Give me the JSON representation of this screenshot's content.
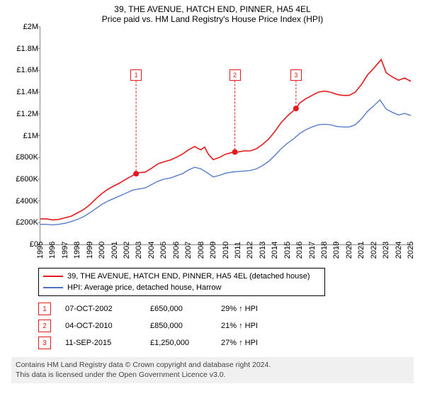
{
  "title_line1": "39, THE AVENUE, HATCH END, PINNER, HA5 4EL",
  "title_line2": "Price paid vs. HM Land Registry's House Price Index (HPI)",
  "y_axis": {
    "min": 0,
    "max": 2000000,
    "step": 200000,
    "ticks": [
      "£0",
      "£200K",
      "£400K",
      "£600K",
      "£800K",
      "£1M",
      "£1.2M",
      "£1.4M",
      "£1.6M",
      "£1.8M",
      "£2M"
    ]
  },
  "x_axis": {
    "min": 1995,
    "max": 2025,
    "ticks": [
      1995,
      1996,
      1997,
      1998,
      1999,
      2000,
      2001,
      2002,
      2003,
      2004,
      2005,
      2006,
      2007,
      2008,
      2009,
      2010,
      2011,
      2012,
      2013,
      2014,
      2015,
      2016,
      2017,
      2018,
      2019,
      2020,
      2021,
      2022,
      2023,
      2024,
      2025
    ]
  },
  "colors": {
    "series_red": "#e41a1c",
    "series_blue": "#4a74c9",
    "grid": "#ffffff",
    "tick": "#888888",
    "callout_border": "#e41a1c",
    "footer_bg": "#f0f0f0"
  },
  "series": {
    "red": {
      "label": "39, THE AVENUE, HATCH END, PINNER, HA5 4EL (detached house)",
      "width": 1.6,
      "points": [
        [
          1995,
          235000
        ],
        [
          1995.5,
          235000
        ],
        [
          1996,
          225000
        ],
        [
          1996.5,
          230000
        ],
        [
          1997,
          245000
        ],
        [
          1997.5,
          260000
        ],
        [
          1998,
          290000
        ],
        [
          1998.5,
          320000
        ],
        [
          1999,
          365000
        ],
        [
          1999.5,
          420000
        ],
        [
          2000,
          470000
        ],
        [
          2000.5,
          510000
        ],
        [
          2001,
          540000
        ],
        [
          2001.5,
          570000
        ],
        [
          2002,
          605000
        ],
        [
          2002.5,
          635000
        ],
        [
          2002.75,
          650000
        ],
        [
          2003,
          660000
        ],
        [
          2003.5,
          665000
        ],
        [
          2004,
          700000
        ],
        [
          2004.5,
          740000
        ],
        [
          2005,
          760000
        ],
        [
          2005.5,
          775000
        ],
        [
          2006,
          800000
        ],
        [
          2006.5,
          830000
        ],
        [
          2007,
          870000
        ],
        [
          2007.5,
          900000
        ],
        [
          2007.8,
          880000
        ],
        [
          2008,
          870000
        ],
        [
          2008.3,
          895000
        ],
        [
          2008.6,
          830000
        ],
        [
          2009,
          780000
        ],
        [
          2009.5,
          800000
        ],
        [
          2010,
          830000
        ],
        [
          2010.5,
          845000
        ],
        [
          2010.75,
          850000
        ],
        [
          2011,
          850000
        ],
        [
          2011.5,
          860000
        ],
        [
          2012,
          860000
        ],
        [
          2012.5,
          880000
        ],
        [
          2013,
          920000
        ],
        [
          2013.5,
          970000
        ],
        [
          2014,
          1040000
        ],
        [
          2014.5,
          1120000
        ],
        [
          2015,
          1180000
        ],
        [
          2015.5,
          1230000
        ],
        [
          2015.7,
          1250000
        ],
        [
          2016,
          1300000
        ],
        [
          2016.5,
          1340000
        ],
        [
          2017,
          1370000
        ],
        [
          2017.5,
          1400000
        ],
        [
          2018,
          1410000
        ],
        [
          2018.5,
          1400000
        ],
        [
          2019,
          1380000
        ],
        [
          2019.5,
          1370000
        ],
        [
          2020,
          1370000
        ],
        [
          2020.5,
          1400000
        ],
        [
          2021,
          1470000
        ],
        [
          2021.5,
          1560000
        ],
        [
          2022,
          1620000
        ],
        [
          2022.3,
          1660000
        ],
        [
          2022.6,
          1700000
        ],
        [
          2023,
          1580000
        ],
        [
          2023.5,
          1540000
        ],
        [
          2024,
          1510000
        ],
        [
          2024.5,
          1530000
        ],
        [
          2025,
          1500000
        ]
      ]
    },
    "blue": {
      "label": "HPI: Average price, detached house, Harrow",
      "width": 1.3,
      "points": [
        [
          1995,
          185000
        ],
        [
          1995.5,
          185000
        ],
        [
          1996,
          180000
        ],
        [
          1996.5,
          185000
        ],
        [
          1997,
          195000
        ],
        [
          1997.5,
          210000
        ],
        [
          1998,
          230000
        ],
        [
          1998.5,
          255000
        ],
        [
          1999,
          290000
        ],
        [
          1999.5,
          330000
        ],
        [
          2000,
          370000
        ],
        [
          2000.5,
          400000
        ],
        [
          2001,
          425000
        ],
        [
          2001.5,
          450000
        ],
        [
          2002,
          475000
        ],
        [
          2002.5,
          500000
        ],
        [
          2003,
          510000
        ],
        [
          2003.5,
          520000
        ],
        [
          2004,
          550000
        ],
        [
          2004.5,
          580000
        ],
        [
          2005,
          600000
        ],
        [
          2005.5,
          610000
        ],
        [
          2006,
          630000
        ],
        [
          2006.5,
          650000
        ],
        [
          2007,
          685000
        ],
        [
          2007.5,
          710000
        ],
        [
          2008,
          695000
        ],
        [
          2008.5,
          660000
        ],
        [
          2009,
          620000
        ],
        [
          2009.5,
          635000
        ],
        [
          2010,
          655000
        ],
        [
          2010.5,
          665000
        ],
        [
          2011,
          670000
        ],
        [
          2011.5,
          675000
        ],
        [
          2012,
          680000
        ],
        [
          2012.5,
          695000
        ],
        [
          2013,
          725000
        ],
        [
          2013.5,
          765000
        ],
        [
          2014,
          820000
        ],
        [
          2014.5,
          880000
        ],
        [
          2015,
          930000
        ],
        [
          2015.5,
          970000
        ],
        [
          2016,
          1020000
        ],
        [
          2016.5,
          1055000
        ],
        [
          2017,
          1080000
        ],
        [
          2017.5,
          1100000
        ],
        [
          2018,
          1105000
        ],
        [
          2018.5,
          1100000
        ],
        [
          2019,
          1085000
        ],
        [
          2019.5,
          1080000
        ],
        [
          2020,
          1080000
        ],
        [
          2020.5,
          1100000
        ],
        [
          2021,
          1155000
        ],
        [
          2021.5,
          1225000
        ],
        [
          2022,
          1275000
        ],
        [
          2022.5,
          1330000
        ],
        [
          2023,
          1245000
        ],
        [
          2023.5,
          1215000
        ],
        [
          2024,
          1190000
        ],
        [
          2024.5,
          1205000
        ],
        [
          2025,
          1185000
        ]
      ]
    }
  },
  "callouts": [
    {
      "n": "1",
      "year": 2002.75,
      "y_box": 1560000
    },
    {
      "n": "2",
      "year": 2010.75,
      "y_box": 1560000
    },
    {
      "n": "3",
      "year": 2015.7,
      "y_box": 1560000
    }
  ],
  "sale_points": [
    {
      "year": 2002.75,
      "price": 650000
    },
    {
      "year": 2010.75,
      "price": 850000
    },
    {
      "year": 2015.7,
      "price": 1250000
    }
  ],
  "legend_items": [
    {
      "color": "#e41a1c",
      "key": "series.red.label"
    },
    {
      "color": "#4a74c9",
      "key": "series.blue.label"
    }
  ],
  "marker_table": [
    {
      "n": "1",
      "date": "07-OCT-2002",
      "price": "£650,000",
      "pct": "29% ↑ HPI"
    },
    {
      "n": "2",
      "date": "04-OCT-2010",
      "price": "£850,000",
      "pct": "21% ↑ HPI"
    },
    {
      "n": "3",
      "date": "11-SEP-2015",
      "price": "£1,250,000",
      "pct": "27% ↑ HPI"
    }
  ],
  "footer_line1": "Contains HM Land Registry data © Crown copyright and database right 2024.",
  "footer_line2": "This data is licensed under the Open Government Licence v3.0."
}
